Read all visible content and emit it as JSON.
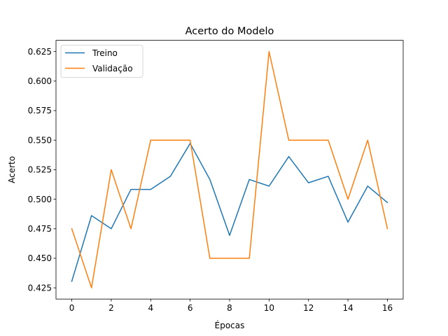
{
  "chart_data": {
    "type": "line",
    "title": "Acerto do Modelo",
    "xlabel": "Épocas",
    "ylabel": "Acerto",
    "x": [
      0,
      1,
      2,
      3,
      4,
      5,
      6,
      7,
      8,
      9,
      10,
      11,
      12,
      13,
      14,
      15,
      16
    ],
    "xlim": [
      -0.8,
      16.8
    ],
    "ylim": [
      0.4155,
      0.6345
    ],
    "xticks": [
      0,
      2,
      4,
      6,
      8,
      10,
      12,
      14,
      16
    ],
    "xtick_labels": [
      "0",
      "2",
      "4",
      "6",
      "8",
      "10",
      "12",
      "14",
      "16"
    ],
    "yticks": [
      0.425,
      0.45,
      0.475,
      0.5,
      0.525,
      0.55,
      0.575,
      0.6,
      0.625
    ],
    "ytick_labels": [
      "0.425",
      "0.450",
      "0.475",
      "0.500",
      "0.525",
      "0.550",
      "0.575",
      "0.600",
      "0.625"
    ],
    "grid": false,
    "legend_position": "top-left",
    "series": [
      {
        "name": "Treino",
        "color": "#1f77b4",
        "values": [
          0.4305,
          0.4861,
          0.475,
          0.5083,
          0.5083,
          0.5194,
          0.5472,
          0.5167,
          0.4694,
          0.5167,
          0.5111,
          0.5361,
          0.5139,
          0.5194,
          0.4806,
          0.5111,
          0.4972
        ]
      },
      {
        "name": "Validação",
        "color": "#ff7f0e",
        "values": [
          0.475,
          0.425,
          0.525,
          0.475,
          0.55,
          0.55,
          0.55,
          0.45,
          0.45,
          0.45,
          0.625,
          0.55,
          0.55,
          0.55,
          0.5,
          0.55,
          0.475
        ]
      }
    ]
  }
}
